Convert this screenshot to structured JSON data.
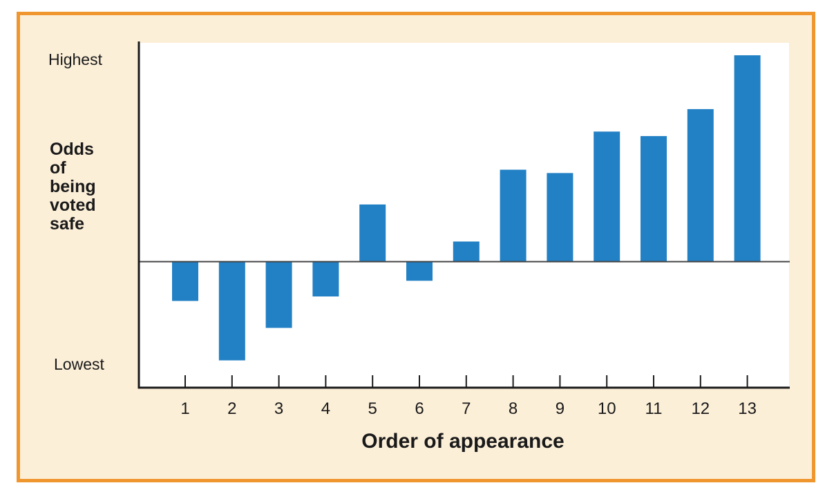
{
  "chart_data": {
    "type": "bar",
    "title": "",
    "xlabel": "Order of appearance",
    "ylabel_lines": [
      "Odds",
      "of",
      "being",
      "voted",
      "safe"
    ],
    "y_extreme_labels": {
      "top": "Highest",
      "bottom": "Lowest"
    },
    "categories": [
      "1",
      "2",
      "3",
      "4",
      "5",
      "6",
      "7",
      "8",
      "9",
      "10",
      "11",
      "12",
      "13"
    ],
    "values": [
      -0.35,
      -0.88,
      -0.59,
      -0.31,
      0.51,
      -0.17,
      0.18,
      0.82,
      0.79,
      1.16,
      1.12,
      1.36,
      1.84
    ],
    "ylim": [
      -1.0,
      1.84
    ],
    "baseline": 0,
    "bar_color": "#2280c4",
    "grid": false,
    "legend": "none"
  },
  "colors": {
    "frame_border": "#f0962f",
    "frame_fill": "#fcefd8",
    "plot_fill": "#ffffff",
    "axis": "#1a1a1a",
    "zero_line": "#444444"
  }
}
